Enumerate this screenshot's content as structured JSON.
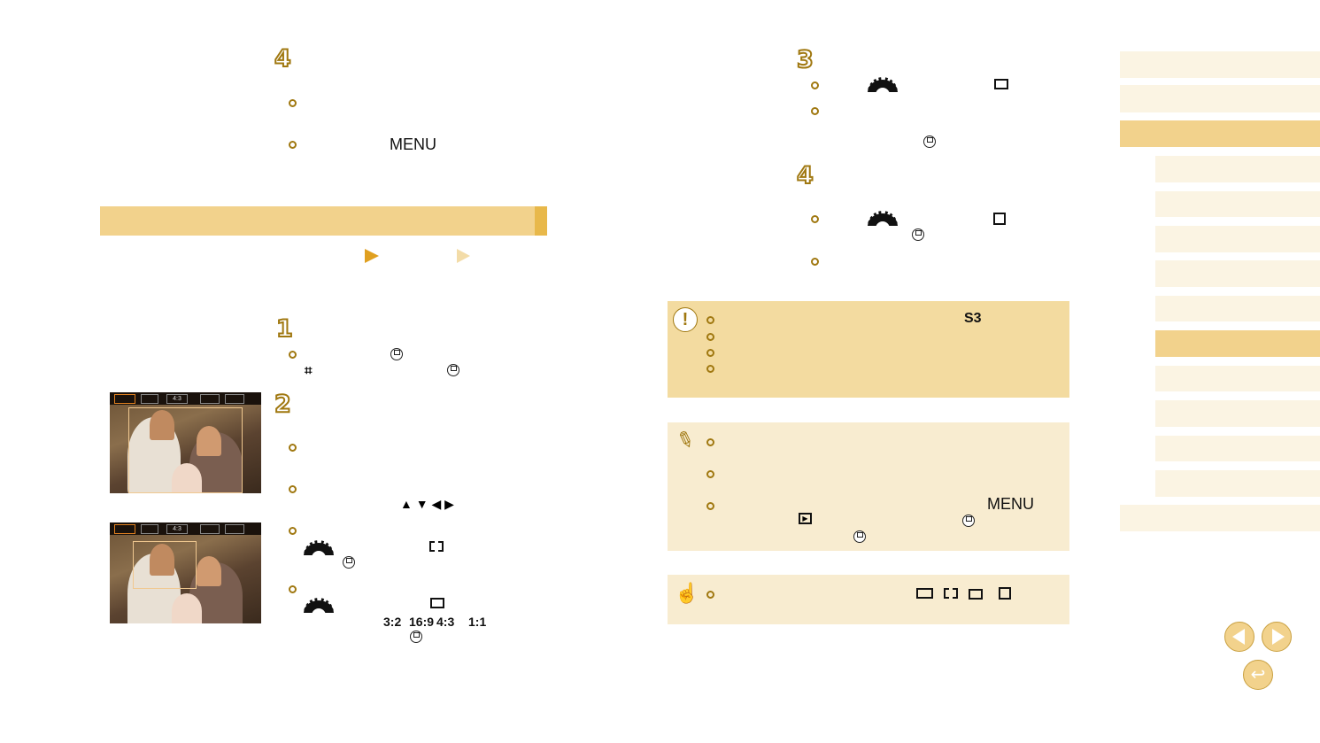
{
  "left": {
    "step_top": "4",
    "menu_label": "MENU",
    "step1": "1",
    "step2": "2",
    "camera_toolbar": {
      "ratio_label": "4:3"
    },
    "aspect_ratios": [
      "3:2",
      "16:9",
      "4:3",
      "1:1"
    ]
  },
  "right": {
    "step3": "3",
    "step4": "4"
  },
  "caution": {
    "size_label": "S3"
  },
  "note": {
    "menu_label": "MENU"
  },
  "colors": {
    "accent": "#a07810",
    "banner": "#f2d28c",
    "banner_edge": "#e8b84a",
    "caution_bg": "#f3dba0",
    "note_bg": "#f8ecd0",
    "sidebar": "#fbf4e3"
  },
  "sidebar": {
    "active_items": [
      2,
      8
    ]
  }
}
